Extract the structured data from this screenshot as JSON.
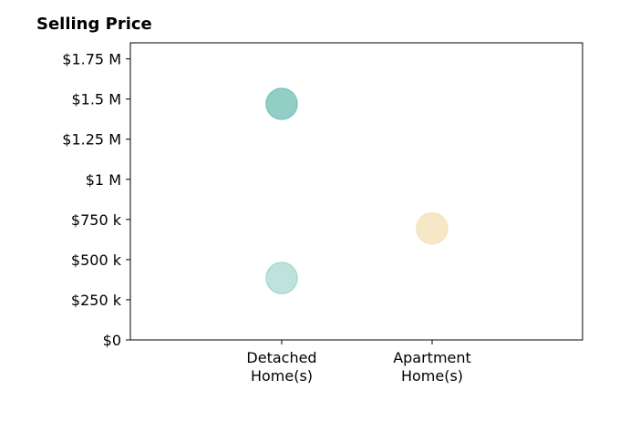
{
  "chart_data": {
    "type": "scatter",
    "title": "Selling Price",
    "xlabel": "",
    "ylabel": "",
    "categories": [
      [
        "Detached",
        "Home(s)"
      ],
      [
        "Apartment",
        "Home(s)"
      ]
    ],
    "ylim": [
      0,
      1850000
    ],
    "y_ticks": [
      {
        "value": 0,
        "label": "$0"
      },
      {
        "value": 250000,
        "label": "$250 k"
      },
      {
        "value": 500000,
        "label": "$500 k"
      },
      {
        "value": 750000,
        "label": "$750 k"
      },
      {
        "value": 1000000,
        "label": "$1 M"
      },
      {
        "value": 1250000,
        "label": "$1.25 M"
      },
      {
        "value": 1500000,
        "label": "$1.5 M"
      },
      {
        "value": 1750000,
        "label": "$1.75 M"
      }
    ],
    "points": [
      {
        "category": 0,
        "value": 1470000,
        "color": "#7fc6bb",
        "opacity": 0.85
      },
      {
        "category": 0,
        "value": 385000,
        "color": "#a8d9d3",
        "opacity": 0.75
      },
      {
        "category": 1,
        "value": 695000,
        "color": "#f5e4bc",
        "opacity": 0.85
      }
    ],
    "grid": false,
    "legend": "none"
  }
}
